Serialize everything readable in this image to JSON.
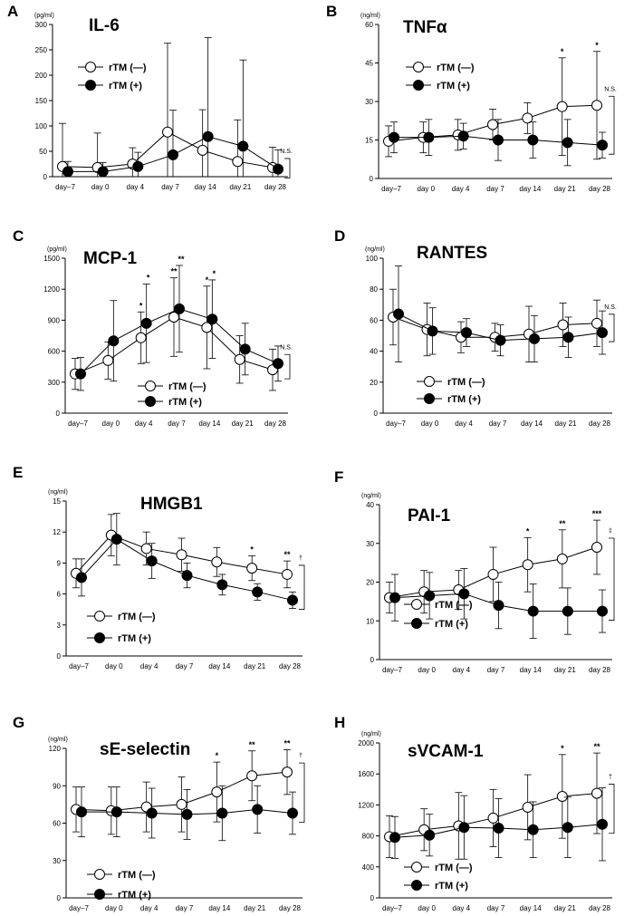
{
  "chart_data": [
    {
      "letter": "A",
      "title": "IL-6",
      "unit": "(pg/ml)",
      "type": "line",
      "categories": [
        "day–7",
        "day 0",
        "day 4",
        "day 7",
        "day 14",
        "day 21",
        "day 28"
      ],
      "ylim": [
        0,
        300
      ],
      "yticks": [
        0,
        50,
        100,
        150,
        200,
        250,
        300
      ],
      "series": [
        {
          "name": "rTM (—)",
          "values": [
            20,
            18,
            25,
            88,
            52,
            30,
            18
          ],
          "err": [
            85,
            68,
            32,
            175,
            80,
            82,
            40
          ]
        },
        {
          "name": "rTM (+)",
          "values": [
            10,
            10,
            20,
            43,
            79,
            60,
            15
          ],
          "err": [
            20,
            18,
            28,
            88,
            195,
            170,
            38
          ]
        }
      ],
      "sig": [
        "",
        "",
        "",
        "",
        "",
        "",
        ""
      ],
      "comparison": "N.S."
    },
    {
      "letter": "B",
      "title": "TNFα",
      "unit": "(ng/ml)",
      "type": "line",
      "categories": [
        "day–7",
        "day 0",
        "day 4",
        "day 7",
        "day 14",
        "day 21",
        "day 28"
      ],
      "ylim": [
        0,
        60
      ],
      "yticks": [
        0,
        15,
        30,
        45,
        60
      ],
      "series": [
        {
          "name": "rTM (—)",
          "values": [
            14.5,
            16,
            17,
            21,
            23.5,
            28,
            28.5
          ],
          "err": [
            6,
            6,
            6,
            6,
            6,
            19,
            21
          ]
        },
        {
          "name": "rTM (+)",
          "values": [
            16,
            16,
            16.5,
            15,
            15,
            14,
            13
          ],
          "err": [
            6,
            7,
            5,
            8,
            7,
            9,
            5
          ]
        }
      ],
      "sig": [
        "",
        "",
        "",
        "",
        "",
        "*",
        "*"
      ],
      "comparison": "N.S."
    },
    {
      "letter": "C",
      "title": "MCP-1",
      "unit": "(pg/ml)",
      "type": "line",
      "categories": [
        "day–7",
        "day 0",
        "day 4",
        "day 7",
        "day 14",
        "day 21",
        "day 28"
      ],
      "ylim": [
        0,
        1500
      ],
      "yticks": [
        0,
        300,
        600,
        900,
        1200,
        1500
      ],
      "series": [
        {
          "name": "rTM (—)",
          "values": [
            380,
            510,
            730,
            930,
            830,
            520,
            420
          ],
          "err": [
            150,
            180,
            250,
            380,
            400,
            230,
            200
          ]
        },
        {
          "name": "rTM (+)",
          "values": [
            380,
            700,
            870,
            1010,
            910,
            620,
            480
          ],
          "err": [
            160,
            390,
            380,
            420,
            380,
            250,
            170
          ]
        }
      ],
      "sig": [
        "",
        "",
        "*",
        "**",
        "*",
        "",
        ""
      ],
      "sig2": [
        "",
        "",
        "*",
        "**",
        "*",
        "",
        ""
      ],
      "comparison": "N.S."
    },
    {
      "letter": "D",
      "title": "RANTES",
      "unit": "(ng/ml)",
      "type": "line",
      "categories": [
        "day–7",
        "day 0",
        "day 4",
        "day 7",
        "day 14",
        "day 21",
        "day 28"
      ],
      "ylim": [
        0,
        100
      ],
      "yticks": [
        0,
        20,
        40,
        60,
        80,
        100
      ],
      "series": [
        {
          "name": "rTM (—)",
          "values": [
            62,
            54,
            49,
            49,
            51,
            57,
            58
          ],
          "err": [
            18,
            17,
            10,
            9,
            18,
            14,
            15
          ]
        },
        {
          "name": "rTM (+)",
          "values": [
            64,
            53,
            52,
            47,
            48,
            49,
            52
          ],
          "err": [
            31,
            15,
            9,
            10,
            15,
            13,
            14
          ]
        }
      ],
      "sig": [
        "",
        "",
        "",
        "",
        "",
        "",
        ""
      ],
      "comparison": "N.S."
    },
    {
      "letter": "E",
      "title": "HMGB1",
      "unit": "(ng/ml)",
      "type": "line",
      "categories": [
        "day–7",
        "day 0",
        "day 4",
        "day 7",
        "day 14",
        "day 21",
        "day 28"
      ],
      "ylim": [
        0,
        15
      ],
      "yticks": [
        0,
        3,
        6,
        9,
        12,
        15
      ],
      "series": [
        {
          "name": "rTM (—)",
          "values": [
            8,
            11.7,
            10.4,
            9.8,
            9.1,
            8.5,
            7.9
          ],
          "err": [
            1.4,
            2.0,
            1.6,
            1.6,
            1.4,
            1.2,
            1.3
          ]
        },
        {
          "name": "rTM (+)",
          "values": [
            7.6,
            11.3,
            9.2,
            7.8,
            6.9,
            6.2,
            5.4
          ],
          "err": [
            1.8,
            2.5,
            1.7,
            1.2,
            1.0,
            0.8,
            0.8
          ]
        }
      ],
      "sig": [
        "",
        "",
        "",
        "",
        "",
        "*",
        "**"
      ],
      "comparison": "†"
    },
    {
      "letter": "F",
      "title": "PAI-1",
      "unit": "(ng/ml)",
      "type": "line",
      "categories": [
        "day–7",
        "day 0",
        "day 4",
        "day 7",
        "day 14",
        "day 21",
        "day 28"
      ],
      "ylim": [
        0,
        40
      ],
      "yticks": [
        0,
        10,
        20,
        30,
        40
      ],
      "series": [
        {
          "name": "rTM (—)",
          "values": [
            16,
            17.5,
            18,
            22,
            24.5,
            26,
            29
          ],
          "err": [
            4,
            5.5,
            5,
            7,
            7,
            7.5,
            7
          ]
        },
        {
          "name": "rTM (+)",
          "values": [
            16,
            16.5,
            17,
            14,
            12.5,
            12.5,
            12.5
          ],
          "err": [
            6,
            6,
            6.5,
            6,
            7,
            6,
            5.5
          ]
        }
      ],
      "sig": [
        "",
        "",
        "",
        "",
        "*",
        "**",
        "***"
      ],
      "comparison": "‡"
    },
    {
      "letter": "G",
      "title": "sE-selectin",
      "unit": "(ng/ml)",
      "type": "line",
      "categories": [
        "day–7",
        "day 0",
        "day 4",
        "day 7",
        "day 14",
        "day 21",
        "day 28"
      ],
      "ylim": [
        0,
        120
      ],
      "yticks": [
        0,
        30,
        60,
        90,
        120
      ],
      "series": [
        {
          "name": "rTM (—)",
          "values": [
            71,
            70,
            73,
            75,
            85,
            98,
            101
          ],
          "err": [
            18,
            19,
            20,
            22,
            24,
            20,
            18
          ]
        },
        {
          "name": "rTM (+)",
          "values": [
            69,
            69,
            68,
            67,
            68,
            71,
            68
          ],
          "err": [
            20,
            20,
            20,
            20,
            22,
            19,
            17
          ]
        }
      ],
      "sig": [
        "",
        "",
        "",
        "",
        "*",
        "**",
        "**"
      ],
      "comparison": "†"
    },
    {
      "letter": "H",
      "title": "sVCAM-1",
      "unit": "(ng/ml)",
      "type": "line",
      "categories": [
        "day–7",
        "day 0",
        "day 4",
        "day 7",
        "day 14",
        "day 21",
        "day 28"
      ],
      "ylim": [
        0,
        2000
      ],
      "yticks": [
        0,
        400,
        800,
        1200,
        1600,
        2000
      ],
      "series": [
        {
          "name": "rTM (—)",
          "values": [
            790,
            880,
            930,
            1030,
            1170,
            1310,
            1350
          ],
          "err": [
            270,
            270,
            430,
            370,
            420,
            540,
            520
          ]
        },
        {
          "name": "rTM (+)",
          "values": [
            780,
            810,
            910,
            900,
            880,
            910,
            950
          ],
          "err": [
            270,
            270,
            410,
            380,
            360,
            390,
            470
          ]
        }
      ],
      "sig": [
        "",
        "",
        "",
        "",
        "",
        "*",
        "**"
      ],
      "comparison": "†"
    }
  ]
}
